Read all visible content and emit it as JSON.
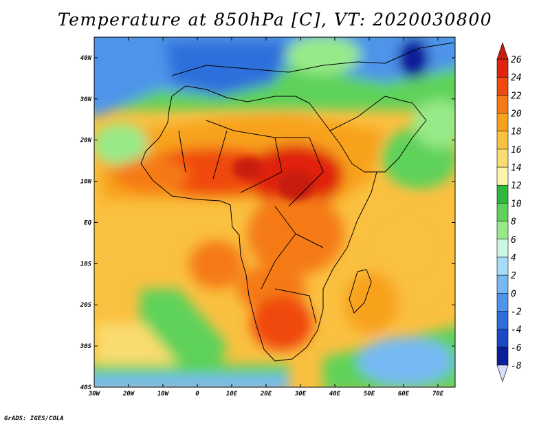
{
  "title": "Temperature at 850hPa [C], VT: 2020030800",
  "credit": "GrADS: IGES/COLA",
  "map": {
    "region": "Africa",
    "lon_range": [
      -30,
      75
    ],
    "lat_range": [
      -40,
      45
    ],
    "lon_ticks": [
      "30W",
      "20W",
      "10W",
      "0",
      "10E",
      "20E",
      "30E",
      "40E",
      "50E",
      "60E",
      "70E"
    ],
    "lat_ticks": [
      "40N",
      "30N",
      "20N",
      "10N",
      "EQ",
      "10S",
      "20S",
      "30S",
      "40S"
    ]
  },
  "colorbar": {
    "labels": [
      "26",
      "24",
      "22",
      "20",
      "18",
      "16",
      "14",
      "12",
      "10",
      "8",
      "6",
      "4",
      "2",
      "0",
      "-2",
      "-4",
      "-6",
      "-8"
    ],
    "colors_warm_to_cold": [
      "#e0240e",
      "#f04a10",
      "#f57a14",
      "#f8a21c",
      "#fac040",
      "#fadc70",
      "#fbf6aa",
      "#2fb73e",
      "#5fd25a",
      "#98ea88",
      "#cdf7e5",
      "#a6dcf8",
      "#76b9f4",
      "#4d94ea",
      "#2f6fdb",
      "#1a49c6",
      "#0c1f9a"
    ],
    "top_cap_color": "#c81d0c",
    "bottom_cap_color": "#d6defa"
  }
}
